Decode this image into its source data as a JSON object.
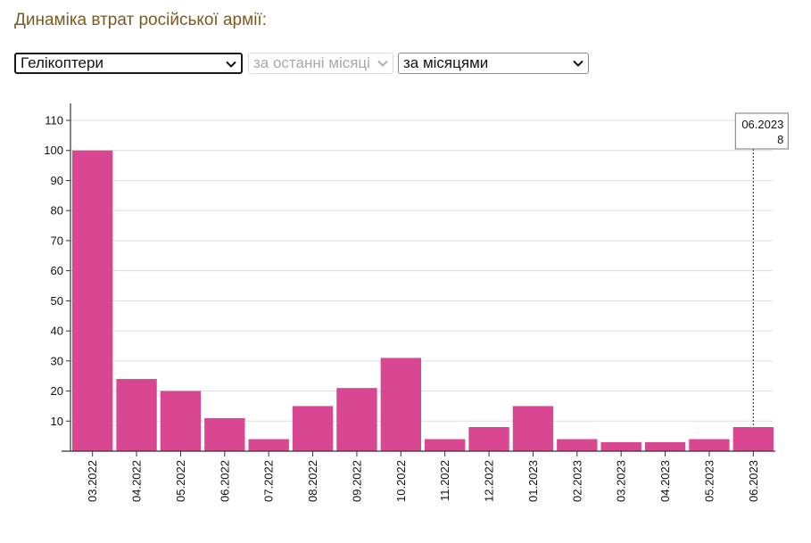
{
  "page": {
    "title": "Динаміка втрат російської армії:"
  },
  "controls": {
    "category_select": {
      "value": "Гелікоптери"
    },
    "period_select": {
      "value": "за останні місяці",
      "disabled": true
    },
    "grouping_select": {
      "value": "за місяцями"
    }
  },
  "colors": {
    "bar": "#d94691",
    "grid": "#dddddd",
    "axis": "#333333",
    "title": "#7a5a22"
  },
  "tooltip": {
    "category": "06.2023",
    "value": "8"
  },
  "chart_data": {
    "type": "bar",
    "categories": [
      "03.2022",
      "04.2022",
      "05.2022",
      "06.2022",
      "07.2022",
      "08.2022",
      "09.2022",
      "10.2022",
      "11.2022",
      "12.2022",
      "01.2023",
      "02.2023",
      "03.2023",
      "04.2023",
      "05.2023",
      "06.2023"
    ],
    "values": [
      100,
      24,
      20,
      11,
      4,
      15,
      21,
      31,
      4,
      8,
      15,
      4,
      3,
      3,
      4,
      8
    ],
    "title": "",
    "xlabel": "",
    "ylabel": "",
    "ylim": [
      0,
      110
    ],
    "yticks": [
      10,
      20,
      30,
      40,
      50,
      60,
      70,
      80,
      90,
      100,
      110
    ],
    "grid": true,
    "xtick_rotation": "vertical"
  }
}
